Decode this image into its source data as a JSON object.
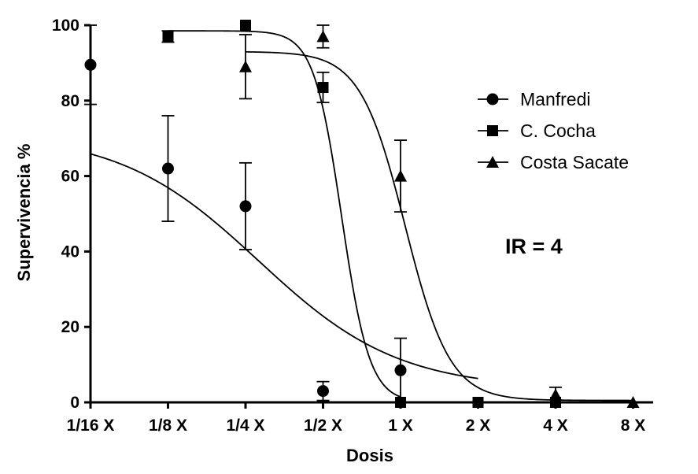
{
  "chart_data": {
    "type": "scatter",
    "title": "",
    "xlabel": "Dosis",
    "ylabel": "Supervivencia %",
    "categories": [
      "1/16 X",
      "1/8 X",
      "1/4 X",
      "1/2 X",
      "1 X",
      "2 X",
      "4 X",
      "8 X"
    ],
    "ylim": [
      0,
      100
    ],
    "yticks": [
      "0",
      "20",
      "40",
      "60",
      "80",
      "100"
    ],
    "legend_position": "right",
    "annotation": "IR = 4",
    "series": [
      {
        "name": "Manfredi",
        "marker": "circle",
        "points": [
          {
            "x": "1/16 X",
            "y": 89.5,
            "err": 10.5
          },
          {
            "x": "1/8 X",
            "y": 62,
            "err": 14
          },
          {
            "x": "1/4 X",
            "y": 52,
            "err": 11.5
          },
          {
            "x": "1/2 X",
            "y": 3,
            "err": 2.5
          },
          {
            "x": "1 X",
            "y": 8.5,
            "err": 8.5
          }
        ],
        "fit": {
          "top": 71.5,
          "bottom": 3.5,
          "ec50_index": 2.17,
          "hill": 1.6,
          "range": [
            0,
            5
          ]
        }
      },
      {
        "name": "C. Cocha",
        "marker": "square",
        "points": [
          {
            "x": "1/8 X",
            "y": 97,
            "err": 1.5
          },
          {
            "x": "1/4 X",
            "y": 100,
            "err": 0
          },
          {
            "x": "1/2 X",
            "y": 83.5,
            "err": 4
          },
          {
            "x": "1 X",
            "y": 0,
            "err": 0
          },
          {
            "x": "2 X",
            "y": 0,
            "err": 0
          },
          {
            "x": "4 X",
            "y": 0,
            "err": 0
          }
        ],
        "fit": {
          "top": 98.5,
          "bottom": 0,
          "ec50_index": 3.24,
          "hill": 8,
          "range": [
            1,
            4
          ]
        }
      },
      {
        "name": "Costa Sacate",
        "marker": "triangle",
        "points": [
          {
            "x": "1/4 X",
            "y": 89,
            "err": 8.5
          },
          {
            "x": "1/2 X",
            "y": 97,
            "err": 3
          },
          {
            "x": "1 X",
            "y": 60,
            "err": 9.5
          },
          {
            "x": "4 X",
            "y": 2,
            "err": 2
          },
          {
            "x": "8 X",
            "y": 0,
            "err": 0
          }
        ],
        "fit": {
          "top": 93,
          "bottom": 0.5,
          "ec50_index": 4.06,
          "hill": 5,
          "range": [
            2,
            7
          ]
        }
      }
    ]
  }
}
